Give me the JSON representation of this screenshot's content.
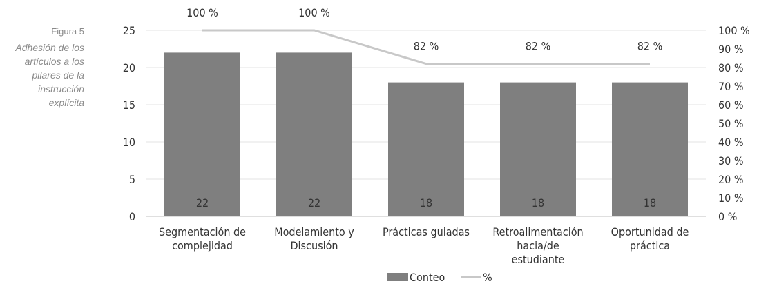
{
  "caption": {
    "figure": "Figura 5",
    "description": "Adhesión de los artículos a los pilares de la instrucción explícita"
  },
  "chart_data": {
    "type": "bar",
    "categories": [
      [
        "Segmentación de",
        "complejidad"
      ],
      [
        "Modelamiento y",
        "Discusión"
      ],
      [
        "Prácticas guiadas"
      ],
      [
        "Retroalimentación",
        "hacia/de",
        "estudiante"
      ],
      [
        "Oportunidad de",
        "práctica"
      ]
    ],
    "series": [
      {
        "name": "Conteo",
        "type": "bar",
        "axis": "left",
        "color": "#7f7f7f",
        "values": [
          22,
          22,
          18,
          18,
          18
        ],
        "labels": [
          "22",
          "22",
          "18",
          "18",
          "18"
        ]
      },
      {
        "name": "%",
        "type": "line",
        "axis": "right",
        "color": "#c8c8c8",
        "values": [
          100,
          100,
          82,
          82,
          82
        ],
        "labels": [
          "100 %",
          "100 %",
          "82 %",
          "82 %",
          "82 %"
        ]
      }
    ],
    "left_axis": {
      "min": 0,
      "max": 25,
      "ticks": [
        "0",
        "5",
        "10",
        "15",
        "20",
        "25"
      ]
    },
    "right_axis": {
      "min": 0,
      "max": 100,
      "ticks": [
        "0 %",
        "10 %",
        "20 %",
        "30 %",
        "40 %",
        "50 %",
        "60 %",
        "70 %",
        "80 %",
        "90 %",
        "100 %"
      ]
    },
    "grid": true,
    "legend": "bottom"
  }
}
